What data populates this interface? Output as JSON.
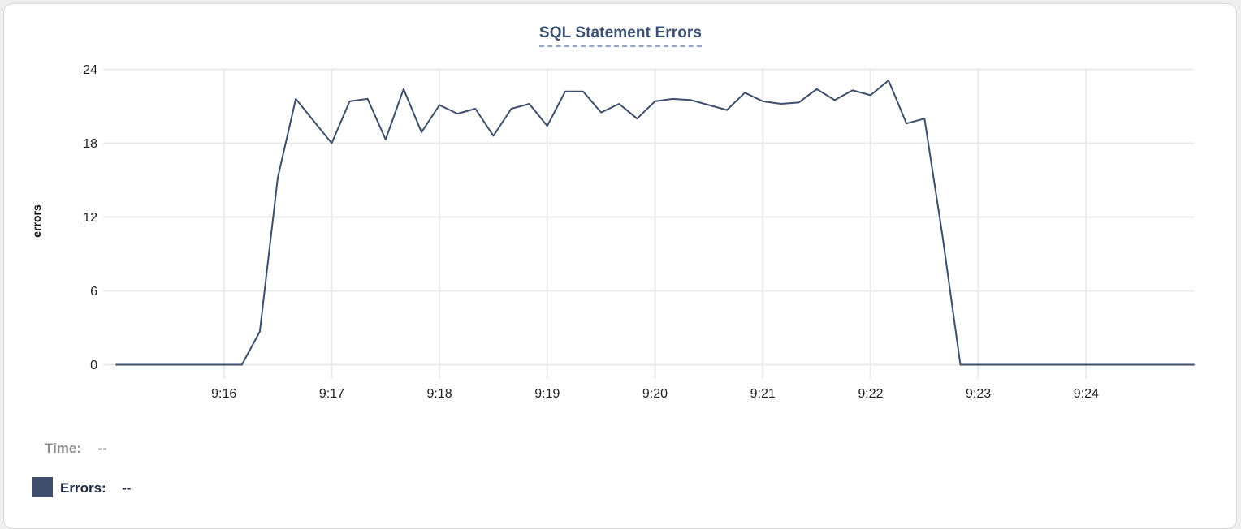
{
  "chart": {
    "title": "SQL Statement Errors",
    "y_axis_label": "errors",
    "y_ticks": [
      0,
      6,
      12,
      18,
      24
    ],
    "x_ticks": [
      "9:16",
      "9:17",
      "9:18",
      "9:19",
      "9:20",
      "9:21",
      "9:22",
      "9:23",
      "9:24"
    ]
  },
  "chart_data": {
    "type": "line",
    "title": "SQL Statement Errors",
    "xlabel": "",
    "ylabel": "errors",
    "ylim": [
      0,
      24
    ],
    "y_tick_labels": [
      0,
      6,
      12,
      18,
      24
    ],
    "x_tick_labels": [
      "9:16",
      "9:17",
      "9:18",
      "9:19",
      "9:20",
      "9:21",
      "9:22",
      "9:23",
      "9:24"
    ],
    "x_start_time": "9:15:00",
    "x_end_time": "9:25:00",
    "sample_interval_seconds": 10,
    "grid": true,
    "legend_position": "bottom-left",
    "series": [
      {
        "name": "Errors",
        "color": "#3d4e6c",
        "values": [
          0,
          0,
          0,
          0,
          0,
          0,
          0,
          0,
          2.7,
          15.2,
          21.6,
          19.8,
          18.0,
          21.4,
          21.6,
          18.3,
          22.4,
          18.9,
          21.1,
          20.4,
          20.8,
          18.6,
          20.8,
          21.2,
          19.4,
          22.2,
          22.2,
          20.5,
          21.2,
          20.0,
          21.4,
          21.6,
          21.5,
          21.1,
          20.7,
          22.1,
          21.4,
          21.2,
          21.3,
          22.4,
          21.5,
          22.3,
          21.9,
          23.1,
          19.6,
          20.0,
          10.5,
          0,
          0,
          0,
          0,
          0,
          0,
          0,
          0,
          0,
          0,
          0,
          0,
          0,
          0
        ]
      }
    ]
  },
  "legend": {
    "time_label": "Time:",
    "time_value": "--",
    "errors_label": "Errors:",
    "errors_value": "--",
    "marker_color": "#3e4e6b"
  },
  "colors": {
    "line": "#3d4e6c",
    "title": "#3b5173",
    "title_underline": "#93a4c4",
    "gridline": "#eaeaea",
    "axis_text": "#1f1f1f",
    "legend_time_text": "#8e8e8e",
    "legend_errors_text": "#1d2947",
    "card_border": "#d8d8d8",
    "card_background": "#ffffff"
  }
}
